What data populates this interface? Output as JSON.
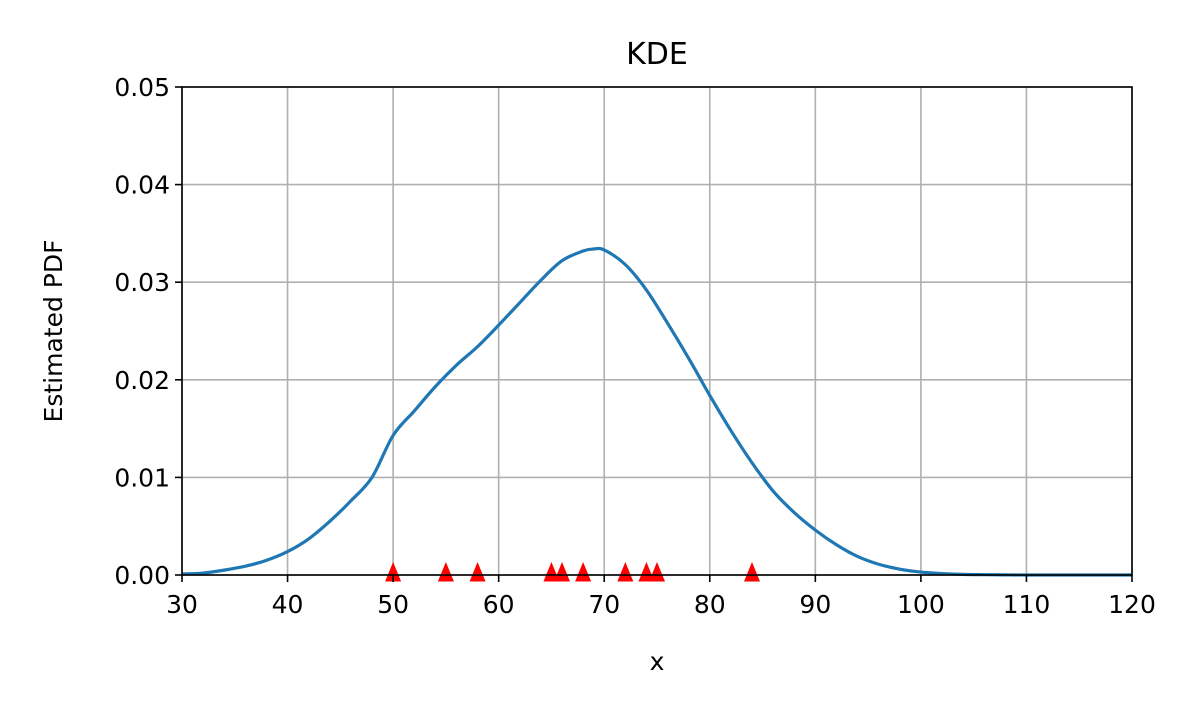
{
  "chart_data": {
    "type": "line",
    "title": "KDE",
    "xlabel": "x",
    "ylabel": "Estimated PDF",
    "xlim": [
      30,
      120
    ],
    "ylim": [
      0,
      0.05
    ],
    "grid": true,
    "x_ticks": [
      30,
      40,
      50,
      60,
      70,
      80,
      90,
      100,
      110,
      120
    ],
    "x_tick_labels": [
      "30",
      "40",
      "50",
      "60",
      "70",
      "80",
      "90",
      "100",
      "110",
      "120"
    ],
    "y_ticks": [
      0,
      0.01,
      0.02,
      0.03,
      0.04,
      0.05
    ],
    "y_tick_labels": [
      "0.00",
      "0.01",
      "0.02",
      "0.03",
      "0.04",
      "0.05"
    ],
    "series": [
      {
        "kind": "line",
        "color": "#1f77b4",
        "x": [
          30,
          32,
          34,
          36,
          38,
          40,
          42,
          44,
          46,
          48,
          50,
          52,
          54,
          56,
          58,
          60,
          62,
          64,
          66,
          68,
          69,
          70,
          72,
          74,
          76,
          78,
          80,
          82,
          84,
          86,
          88,
          90,
          92,
          94,
          96,
          98,
          100,
          102,
          104,
          106,
          108,
          110,
          115,
          120
        ],
        "y": [
          0.0001,
          0.0002,
          0.0005,
          0.0009,
          0.0015,
          0.0024,
          0.0037,
          0.0055,
          0.0076,
          0.01,
          0.0143,
          0.0168,
          0.0193,
          0.0215,
          0.0234,
          0.0256,
          0.0279,
          0.0302,
          0.0322,
          0.0332,
          0.0334,
          0.0333,
          0.0318,
          0.0292,
          0.0258,
          0.0222,
          0.0184,
          0.0148,
          0.0115,
          0.0086,
          0.0064,
          0.0046,
          0.0031,
          0.0019,
          0.0011,
          0.0006,
          0.0003,
          0.00015,
          6e-05,
          3e-05,
          1e-05,
          0.0,
          0.0,
          0.0
        ]
      },
      {
        "kind": "markers",
        "marker": "triangle-up",
        "color": "#ff0000",
        "x": [
          50,
          55,
          58,
          65,
          66,
          68,
          72,
          74,
          75,
          84
        ],
        "y": [
          0,
          0,
          0,
          0,
          0,
          0,
          0,
          0,
          0,
          0
        ]
      }
    ]
  }
}
